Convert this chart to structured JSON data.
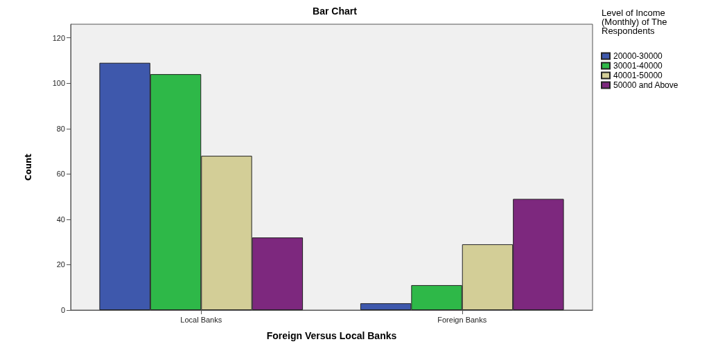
{
  "chart_data": {
    "type": "bar",
    "title": "Bar Chart",
    "xlabel": "Foreign Versus Local Banks",
    "ylabel": "Count",
    "legend_title": "Level of Income\n(Monthly) of The\nRespondents",
    "categories": [
      "Local Banks",
      "Foreign Banks"
    ],
    "series": [
      {
        "name": "20000-30000",
        "color": "#3e58ac",
        "values": [
          109,
          3
        ]
      },
      {
        "name": "30001-40000",
        "color": "#2eb848",
        "values": [
          104,
          11
        ]
      },
      {
        "name": "40001-50000",
        "color": "#d3ce97",
        "values": [
          68,
          29
        ]
      },
      {
        "name": "50000 and Above",
        "color": "#7d287e",
        "values": [
          32,
          49
        ]
      }
    ],
    "ylim": [
      0,
      126
    ],
    "yticks": [
      0,
      20,
      40,
      60,
      80,
      100,
      120
    ],
    "grid": false,
    "legend": "right"
  }
}
